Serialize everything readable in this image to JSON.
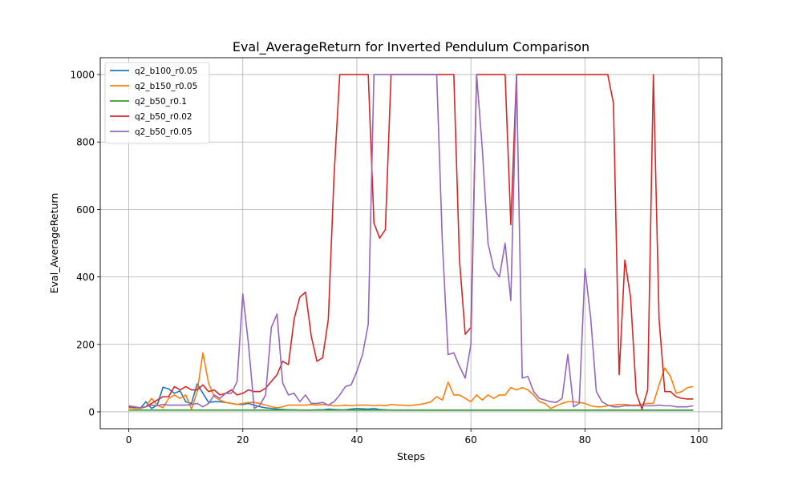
{
  "chart_data": {
    "type": "line",
    "title": "Eval_AverageReturn for Inverted Pendulum Comparison",
    "xlabel": "Steps",
    "ylabel": "Eval_AverageReturn",
    "xlim": [
      -5,
      104
    ],
    "ylim": [
      -50,
      1050
    ],
    "xticks": [
      0,
      20,
      40,
      60,
      80,
      100
    ],
    "yticks": [
      0,
      200,
      400,
      600,
      800,
      1000
    ],
    "grid": true,
    "legend_position": "top-left",
    "x": [
      0,
      1,
      2,
      3,
      4,
      5,
      6,
      7,
      8,
      9,
      10,
      11,
      12,
      13,
      14,
      15,
      16,
      17,
      18,
      19,
      20,
      21,
      22,
      23,
      24,
      25,
      26,
      27,
      28,
      29,
      30,
      31,
      32,
      33,
      34,
      35,
      36,
      37,
      38,
      39,
      40,
      41,
      42,
      43,
      44,
      45,
      46,
      47,
      48,
      49,
      50,
      51,
      52,
      53,
      54,
      55,
      56,
      57,
      58,
      59,
      60,
      61,
      62,
      63,
      64,
      65,
      66,
      67,
      68,
      69,
      70,
      71,
      72,
      73,
      74,
      75,
      76,
      77,
      78,
      79,
      80,
      81,
      82,
      83,
      84,
      85,
      86,
      87,
      88,
      89,
      90,
      91,
      92,
      93,
      94,
      95,
      96,
      97,
      98,
      99
    ],
    "series": [
      {
        "name": "q2_b100_r0.05",
        "color": "#1f77b4",
        "values": [
          15,
          12,
          10,
          30,
          10,
          20,
          73,
          68,
          55,
          62,
          30,
          25,
          83,
          55,
          28,
          30,
          30,
          28,
          25,
          22,
          22,
          25,
          20,
          15,
          12,
          10,
          8,
          7,
          6,
          6,
          5,
          5,
          5,
          6,
          6,
          8,
          7,
          6,
          6,
          8,
          10,
          9,
          8,
          10,
          7,
          6,
          5,
          5,
          5,
          5,
          5,
          5,
          5,
          5,
          5,
          5,
          5,
          5,
          5,
          5,
          5,
          5,
          5,
          5,
          5,
          5,
          5,
          5,
          5,
          5,
          5,
          5,
          5,
          5,
          5,
          5,
          5,
          5,
          5,
          5,
          5,
          5,
          5,
          5,
          5,
          5,
          5,
          5,
          5,
          5,
          5,
          5,
          5,
          5,
          5,
          5,
          5,
          5,
          5,
          5
        ]
      },
      {
        "name": "q2_b150_r0.05",
        "color": "#ff7f0e",
        "values": [
          12,
          10,
          10,
          15,
          40,
          20,
          12,
          40,
          50,
          40,
          50,
          8,
          60,
          175,
          85,
          45,
          35,
          28,
          25,
          22,
          25,
          28,
          28,
          25,
          20,
          15,
          12,
          15,
          20,
          20,
          20,
          20,
          22,
          20,
          22,
          20,
          18,
          18,
          20,
          18,
          20,
          20,
          20,
          18,
          20,
          18,
          22,
          20,
          20,
          18,
          20,
          22,
          25,
          30,
          45,
          35,
          88,
          50,
          50,
          40,
          30,
          50,
          35,
          50,
          40,
          50,
          50,
          72,
          65,
          72,
          65,
          50,
          30,
          25,
          10,
          18,
          25,
          30,
          30,
          28,
          25,
          18,
          15,
          15,
          18,
          20,
          22,
          22,
          20,
          20,
          22,
          25,
          25,
          80,
          130,
          105,
          55,
          60,
          72,
          75
        ]
      },
      {
        "name": "q2_b50_r0.1",
        "color": "#2ca02c",
        "values": [
          5,
          5,
          5,
          5,
          5,
          5,
          5,
          5,
          5,
          5,
          5,
          5,
          5,
          5,
          5,
          5,
          5,
          5,
          5,
          5,
          5,
          5,
          5,
          5,
          5,
          5,
          5,
          5,
          5,
          5,
          5,
          5,
          5,
          5,
          5,
          5,
          5,
          5,
          5,
          5,
          5,
          5,
          5,
          5,
          5,
          5,
          5,
          5,
          5,
          5,
          5,
          5,
          5,
          5,
          5,
          5,
          5,
          5,
          5,
          5,
          5,
          5,
          5,
          5,
          5,
          5,
          5,
          5,
          5,
          5,
          5,
          5,
          5,
          5,
          5,
          5,
          5,
          5,
          5,
          5,
          5,
          5,
          5,
          5,
          5,
          5,
          5,
          5,
          5,
          5,
          5,
          5,
          5,
          5,
          5,
          5,
          5,
          5,
          5,
          5
        ]
      },
      {
        "name": "q2_b50_r0.02",
        "color": "#d62728",
        "values": [
          15,
          15,
          12,
          15,
          25,
          35,
          45,
          45,
          75,
          65,
          75,
          65,
          65,
          80,
          60,
          65,
          50,
          55,
          65,
          50,
          55,
          65,
          60,
          60,
          70,
          90,
          110,
          150,
          140,
          275,
          340,
          355,
          225,
          150,
          160,
          275,
          700,
          1000,
          1000,
          1000,
          1000,
          1000,
          1000,
          560,
          515,
          540,
          1000,
          1000,
          1000,
          1000,
          1000,
          1000,
          1000,
          1000,
          1000,
          1000,
          1000,
          1000,
          450,
          230,
          250,
          1000,
          1000,
          1000,
          1000,
          1000,
          1000,
          555,
          1000,
          1000,
          1000,
          1000,
          1000,
          1000,
          1000,
          1000,
          1000,
          1000,
          1000,
          1000,
          1000,
          1000,
          1000,
          1000,
          1000,
          915,
          110,
          450,
          340,
          55,
          8,
          65,
          1000,
          275,
          60,
          60,
          45,
          40,
          38,
          38
        ]
      },
      {
        "name": "q2_b50_r0.05",
        "color": "#9467bd",
        "values": [
          18,
          15,
          12,
          15,
          20,
          18,
          22,
          20,
          20,
          20,
          20,
          22,
          25,
          15,
          25,
          50,
          40,
          55,
          55,
          90,
          350,
          200,
          10,
          20,
          50,
          250,
          290,
          85,
          50,
          55,
          30,
          50,
          25,
          25,
          28,
          20,
          30,
          50,
          75,
          80,
          120,
          170,
          260,
          1000,
          1000,
          1000,
          1000,
          1000,
          1000,
          1000,
          1000,
          1000,
          1000,
          1000,
          1000,
          500,
          170,
          175,
          135,
          100,
          200,
          1000,
          780,
          500,
          425,
          400,
          500,
          330,
          1000,
          100,
          105,
          60,
          40,
          35,
          30,
          28,
          40,
          170,
          15,
          25,
          425,
          280,
          60,
          30,
          20,
          15,
          15,
          18,
          18,
          18,
          18,
          18,
          18,
          20,
          18,
          18,
          15,
          15,
          15,
          18
        ]
      }
    ]
  }
}
